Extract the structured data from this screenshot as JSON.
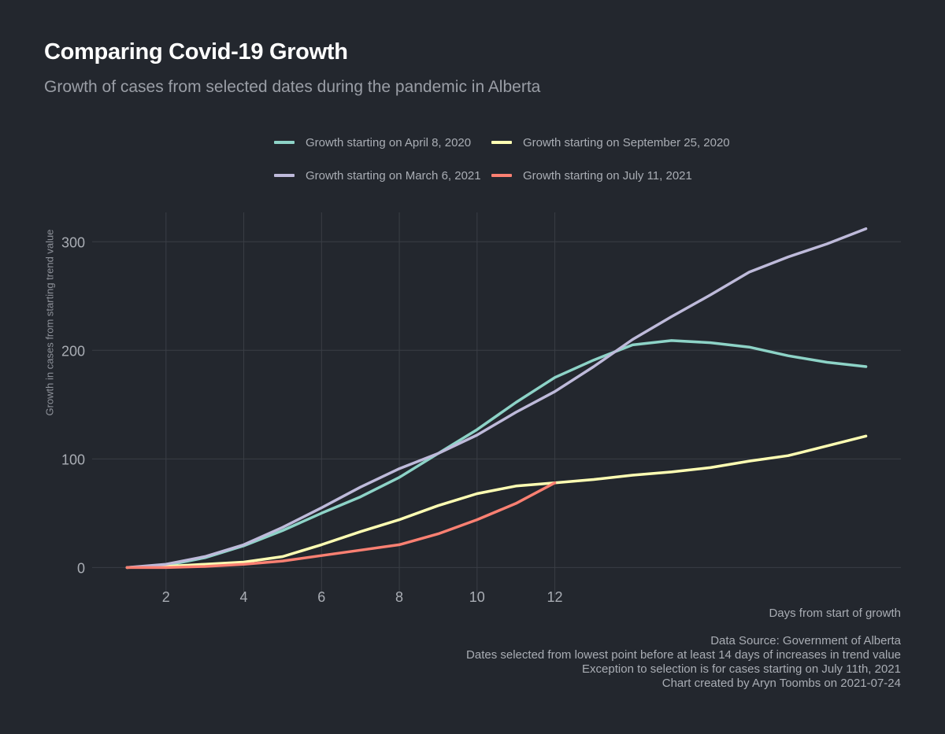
{
  "chart_data": {
    "type": "line",
    "title": "Comparing Covid-19 Growth",
    "subtitle": "Growth of cases from selected dates during the pandemic in Alberta",
    "xlabel": "Days from start of growth",
    "ylabel": "Growth in cases from starting trend value",
    "xlim": [
      0.1,
      20.9
    ],
    "ylim": [
      -28,
      327
    ],
    "x_ticks": [
      2,
      4,
      6,
      8,
      10,
      12
    ],
    "y_ticks": [
      0,
      100,
      200,
      300
    ],
    "grid": true,
    "legend_position": "top",
    "series": [
      {
        "name": "Growth starting on April 8, 2020",
        "color": "#8dd3c7",
        "x": [
          1,
          2,
          3,
          4,
          5,
          6,
          7,
          8,
          9,
          10,
          11,
          12,
          13,
          14,
          15,
          16,
          17,
          18,
          19,
          20
        ],
        "values": [
          0,
          2,
          9,
          20,
          34,
          50,
          65,
          83,
          105,
          127,
          152,
          175,
          191,
          205,
          209,
          207,
          203,
          195,
          189,
          185
        ]
      },
      {
        "name": "Growth starting on September 25, 2020",
        "color": "#ffffb3",
        "x": [
          1,
          2,
          3,
          4,
          5,
          6,
          7,
          8,
          9,
          10,
          11,
          12,
          13,
          14,
          15,
          16,
          17,
          18,
          19,
          20
        ],
        "values": [
          0,
          1,
          3,
          5,
          10,
          21,
          33,
          44,
          57,
          68,
          75,
          78,
          81,
          85,
          88,
          92,
          98,
          103,
          112,
          121
        ]
      },
      {
        "name": "Growth starting on March 6, 2021",
        "color": "#bebada",
        "x": [
          1,
          2,
          3,
          4,
          5,
          6,
          7,
          8,
          9,
          10,
          11,
          12,
          13,
          14,
          15,
          16,
          17,
          18,
          19,
          20
        ],
        "values": [
          0,
          3,
          10,
          21,
          37,
          55,
          74,
          91,
          105,
          122,
          143,
          162,
          185,
          210,
          231,
          251,
          272,
          286,
          298,
          312
        ]
      },
      {
        "name": "Growth starting on July 11, 2021",
        "color": "#fb8072",
        "x": [
          1,
          2,
          3,
          4,
          5,
          6,
          7,
          8,
          9,
          10,
          11,
          12
        ],
        "values": [
          0,
          0,
          1,
          3,
          6,
          11,
          16,
          21,
          31,
          44,
          59,
          78
        ]
      }
    ],
    "caption": [
      "Data Source: Government of Alberta",
      "Dates selected from lowest point before at least 14 days of increases in trend value",
      "Exception to selection is for cases starting on July 11th, 2021",
      "Chart created by Aryn Toombs on 2021-07-24"
    ]
  },
  "colors": {
    "background": "#23272e",
    "grid": "#3a3e45",
    "text": "#a9adb4",
    "title": "#ffffff"
  }
}
